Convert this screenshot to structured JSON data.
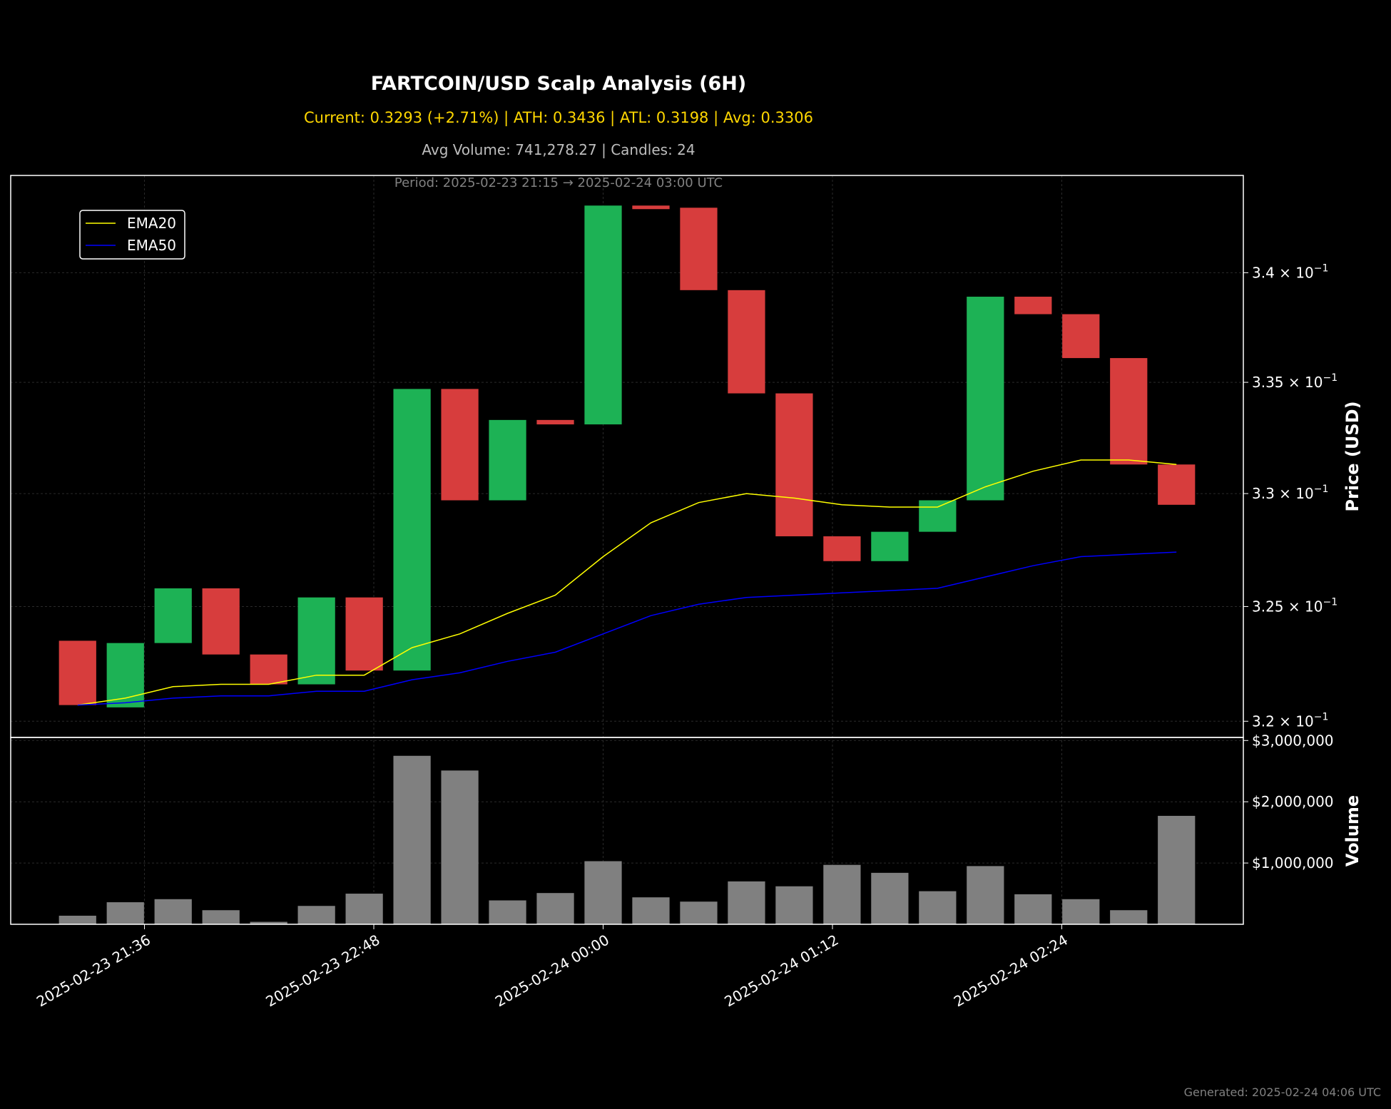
{
  "chart_data": {
    "type": "candlestick",
    "title": "FARTCOIN/USD Scalp Analysis (6H)",
    "subtitle_stats": "Current: 0.3293 (+2.71%) | ATH: 0.3436 | ATL: 0.3198 | Avg: 0.3306",
    "subtitle_volume": "Avg Volume: 741,278.27 | Candles: 24",
    "subtitle_period": "Period: 2025-02-23 21:15 → 2025-02-24 03:00 UTC",
    "footer": "Generated: 2025-02-24 04:06 UTC",
    "price_axis": {
      "label": "Price (USD)",
      "scale": "log",
      "range": [
        0.3193,
        0.3445
      ],
      "ticks": [
        0.32,
        0.325,
        0.33,
        0.335,
        0.34
      ],
      "tick_labels": [
        [
          "3.2",
          "× 10",
          "−1"
        ],
        [
          "3.25",
          "× 10",
          "−1"
        ],
        [
          "3.3",
          "× 10",
          "−1"
        ],
        [
          "3.35",
          "× 10",
          "−1"
        ],
        [
          "3.4",
          "× 10",
          "−1"
        ]
      ]
    },
    "volume_axis": {
      "label": "Volume",
      "range": [
        0,
        3050000
      ],
      "ticks": [
        1000000,
        2000000,
        3000000
      ],
      "tick_labels": [
        "$1,000,000",
        "$2,000,000",
        "$3,000,000"
      ]
    },
    "x_axis": {
      "range_minutes": [
        -21,
        366
      ],
      "ticks_minutes": [
        21,
        93,
        165,
        237,
        309
      ],
      "tick_labels": [
        "2025-02-23 21:36",
        "2025-02-23 22:48",
        "2025-02-24 00:00",
        "2025-02-24 01:12",
        "2025-02-24 02:24"
      ]
    },
    "candle_interval_minutes": 15,
    "candles": [
      {
        "time": "2025-02-23 21:15",
        "open": 0.3235,
        "close": 0.3207,
        "volume": 140000
      },
      {
        "time": "2025-02-23 21:30",
        "open": 0.3206,
        "close": 0.3234,
        "volume": 360000
      },
      {
        "time": "2025-02-23 21:45",
        "open": 0.3234,
        "close": 0.3258,
        "volume": 410000
      },
      {
        "time": "2025-02-23 22:00",
        "open": 0.3258,
        "close": 0.3229,
        "volume": 230000
      },
      {
        "time": "2025-02-23 22:15",
        "open": 0.3229,
        "close": 0.3216,
        "volume": 40000
      },
      {
        "time": "2025-02-23 22:30",
        "open": 0.3216,
        "close": 0.3254,
        "volume": 300000
      },
      {
        "time": "2025-02-23 22:45",
        "open": 0.3254,
        "close": 0.3222,
        "volume": 500000
      },
      {
        "time": "2025-02-23 23:00",
        "open": 0.3222,
        "close": 0.3347,
        "volume": 2750000
      },
      {
        "time": "2025-02-23 23:15",
        "open": 0.3347,
        "close": 0.3297,
        "volume": 2510000
      },
      {
        "time": "2025-02-23 23:30",
        "open": 0.3297,
        "close": 0.3333,
        "volume": 390000
      },
      {
        "time": "2025-02-23 23:45",
        "open": 0.3333,
        "close": 0.3331,
        "volume": 510000
      },
      {
        "time": "2025-02-24 00:00",
        "open": 0.3331,
        "close": 0.3431,
        "volume": 1030000
      },
      {
        "time": "2025-02-24 00:15",
        "open": 0.3431,
        "close": 0.343,
        "volume": 440000
      },
      {
        "time": "2025-02-24 00:30",
        "open": 0.343,
        "close": 0.3392,
        "volume": 370000
      },
      {
        "time": "2025-02-24 00:45",
        "open": 0.3392,
        "close": 0.3345,
        "volume": 700000
      },
      {
        "time": "2025-02-24 01:00",
        "open": 0.3345,
        "close": 0.3281,
        "volume": 620000
      },
      {
        "time": "2025-02-24 01:15",
        "open": 0.3281,
        "close": 0.327,
        "volume": 970000
      },
      {
        "time": "2025-02-24 01:30",
        "open": 0.327,
        "close": 0.3283,
        "volume": 840000
      },
      {
        "time": "2025-02-24 01:45",
        "open": 0.3283,
        "close": 0.3297,
        "volume": 540000
      },
      {
        "time": "2025-02-24 02:00",
        "open": 0.3297,
        "close": 0.3389,
        "volume": 950000
      },
      {
        "time": "2025-02-24 02:15",
        "open": 0.3389,
        "close": 0.3381,
        "volume": 490000
      },
      {
        "time": "2025-02-24 02:30",
        "open": 0.3381,
        "close": 0.3361,
        "volume": 410000
      },
      {
        "time": "2025-02-24 02:45",
        "open": 0.3361,
        "close": 0.3313,
        "volume": 230000
      },
      {
        "time": "2025-02-24 03:00",
        "open": 0.3313,
        "close": 0.3295,
        "volume": 1770000
      }
    ],
    "series": [
      {
        "name": "EMA20",
        "color": "#ffff00",
        "values": [
          0.3207,
          0.321,
          0.3215,
          0.3216,
          0.3216,
          0.322,
          0.322,
          0.3232,
          0.3238,
          0.3247,
          0.3255,
          0.3272,
          0.3287,
          0.3296,
          0.33,
          0.3298,
          0.3295,
          0.3294,
          0.3294,
          0.3303,
          0.331,
          0.3315,
          0.3315,
          0.3313
        ]
      },
      {
        "name": "EMA50",
        "color": "#0000ff",
        "values": [
          0.3207,
          0.3208,
          0.321,
          0.3211,
          0.3211,
          0.3213,
          0.3213,
          0.3218,
          0.3221,
          0.3226,
          0.323,
          0.3238,
          0.3246,
          0.3251,
          0.3254,
          0.3255,
          0.3256,
          0.3257,
          0.3258,
          0.3263,
          0.3268,
          0.3272,
          0.3273,
          0.3274
        ]
      }
    ],
    "colors": {
      "up": "#1db255",
      "down": "#d73d3d",
      "volume": "#808080",
      "background": "#000000"
    },
    "legend": {
      "position": "upper-left",
      "entries": [
        "EMA20",
        "EMA50"
      ]
    },
    "grid": true
  }
}
